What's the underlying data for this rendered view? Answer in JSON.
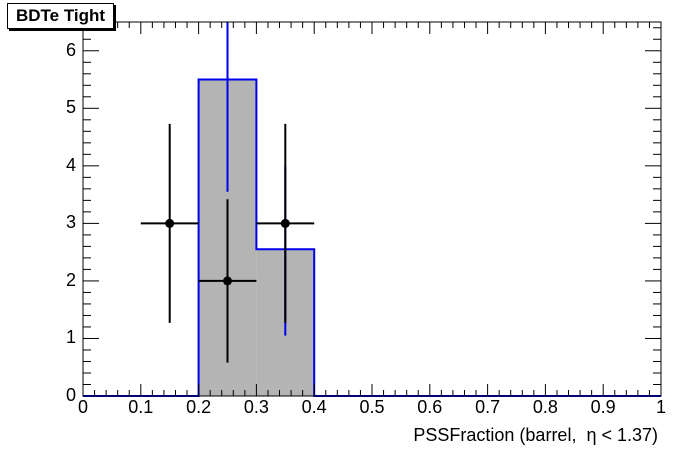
{
  "chart_data": {
    "type": "histogram",
    "title": "BDTe Tight",
    "xlabel": "PSSFraction (barrel,  η < 1.37)",
    "ylabel": "",
    "xlim": [
      0,
      1
    ],
    "ylim": [
      0,
      6.5
    ],
    "x_ticks": [
      "0",
      "0.1",
      "0.2",
      "0.3",
      "0.4",
      "0.5",
      "0.6",
      "0.7",
      "0.8",
      "0.9",
      "1"
    ],
    "y_ticks": [
      "0",
      "1",
      "2",
      "3",
      "4",
      "5",
      "6"
    ],
    "grid": false,
    "legend": "none",
    "series": [
      {
        "kind": "filled-histogram",
        "fill_color": "#b4b4b4",
        "line_color": "#0000ee",
        "bins": [
          {
            "x_low": 0.0,
            "x_high": 0.2,
            "value": 0
          },
          {
            "x_low": 0.2,
            "x_high": 0.3,
            "value": 5.5
          },
          {
            "x_low": 0.3,
            "x_high": 0.4,
            "value": 2.55
          },
          {
            "x_low": 0.4,
            "x_high": 1.0,
            "value": 0
          }
        ],
        "error_bars": [
          {
            "x": 0.25,
            "y_low": 3.55,
            "y_high": 7.5
          },
          {
            "x": 0.35,
            "y_low": 1.05,
            "y_high": 4.0
          }
        ]
      },
      {
        "kind": "points-with-errors",
        "color": "#000000",
        "points": [
          {
            "x": 0.15,
            "y": 3,
            "x_err": 0.05,
            "y_low": 1.27,
            "y_high": 4.73
          },
          {
            "x": 0.25,
            "y": 2,
            "x_err": 0.05,
            "y_low": 0.58,
            "y_high": 3.42
          },
          {
            "x": 0.35,
            "y": 3,
            "x_err": 0.05,
            "y_low": 1.27,
            "y_high": 4.73
          }
        ]
      }
    ]
  }
}
